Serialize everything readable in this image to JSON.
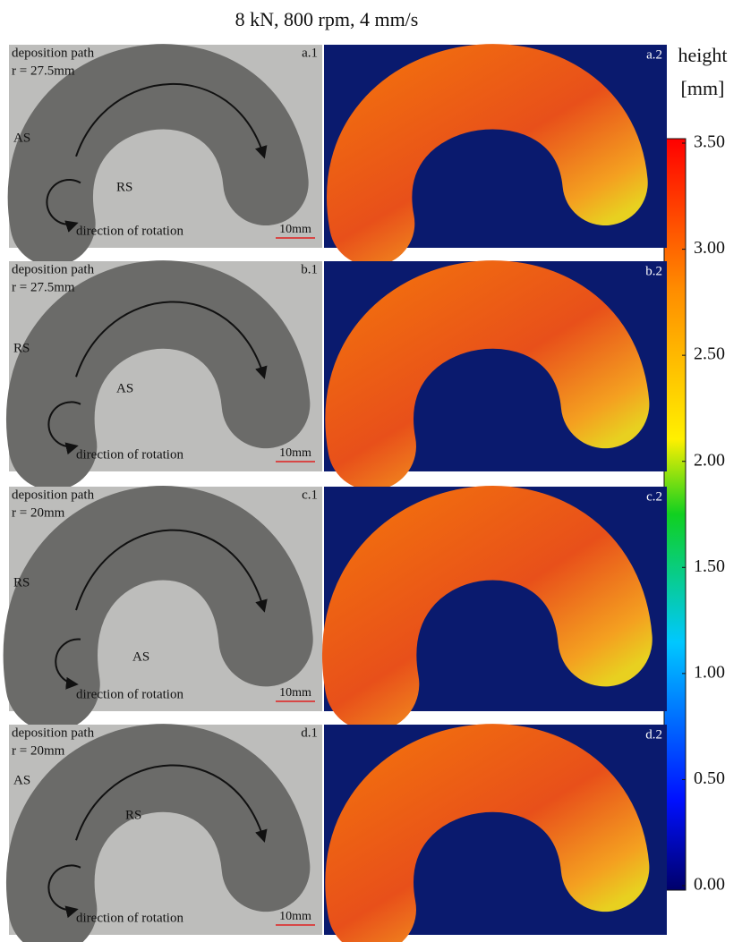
{
  "title": "8 kN, 800 rpm, 4 mm/s",
  "panels": [
    {
      "photo_label": "a.1",
      "map_label": "a.2",
      "path_label": "deposition path",
      "radius": "r = 27.5mm",
      "side_labels": [
        "AS",
        "RS"
      ],
      "rotation": "direction of rotation",
      "scale": "10mm"
    },
    {
      "photo_label": "b.1",
      "map_label": "b.2",
      "path_label": "deposition path",
      "radius": "r = 27.5mm",
      "side_labels": [
        "RS",
        "AS"
      ],
      "rotation": "direction of rotation",
      "scale": "10mm"
    },
    {
      "photo_label": "c.1",
      "map_label": "c.2",
      "path_label": "deposition path",
      "radius": "r = 20mm",
      "side_labels": [
        "RS",
        "AS"
      ],
      "rotation": "direction of rotation",
      "scale": "10mm"
    },
    {
      "photo_label": "d.1",
      "map_label": "d.2",
      "path_label": "deposition path",
      "radius": "r = 20mm",
      "side_labels": [
        "AS",
        "RS"
      ],
      "rotation": "direction of rotation",
      "scale": "10mm"
    }
  ],
  "colorbar": {
    "label": [
      "height",
      "[mm]"
    ],
    "ticks": [
      {
        "value": 3.5,
        "label": "3.50"
      },
      {
        "value": 3,
        "label": "3.00"
      },
      {
        "value": 2.5,
        "label": "2.50"
      },
      {
        "value": 2,
        "label": "2.00"
      },
      {
        "value": 1.5,
        "label": "1.50"
      },
      {
        "value": 1,
        "label": "1.00"
      },
      {
        "value": 0.5,
        "label": "0.50"
      },
      {
        "value": 0,
        "label": "0.00"
      }
    ],
    "lim": [
      0,
      3.5
    ]
  }
}
